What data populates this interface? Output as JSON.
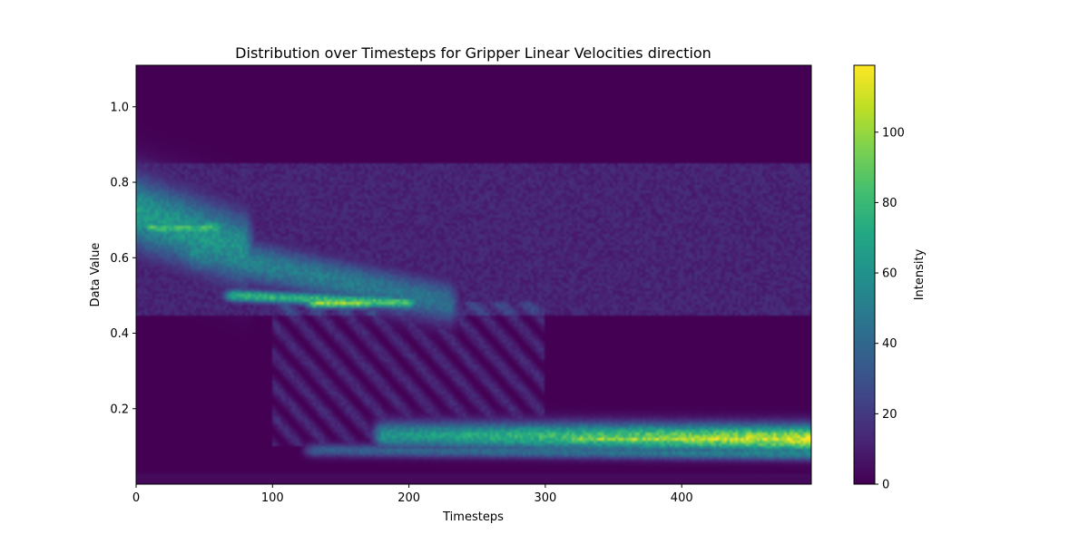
{
  "chart_data": {
    "type": "heatmap",
    "title": "Distribution over Timesteps for Gripper Linear Velocities direction",
    "xlabel": "Timesteps",
    "ylabel": "Data Value",
    "xlim": [
      0,
      495
    ],
    "ylim": [
      0.0,
      1.11
    ],
    "x_ticks": [
      0,
      100,
      200,
      300,
      400
    ],
    "y_ticks": [
      0.2,
      0.4,
      0.6,
      0.8,
      1.0
    ],
    "y_tick_labels": [
      "0.2",
      "0.4",
      "0.6",
      "0.8",
      "1.0"
    ],
    "grid": false,
    "colormap": "viridis",
    "colorbar": {
      "label": "Intensity",
      "range": [
        0,
        119
      ],
      "ticks": [
        0,
        20,
        40,
        60,
        80,
        100
      ]
    },
    "bands": [
      {
        "x_start": 0,
        "x_end": 80,
        "y_center_start": 0.72,
        "y_center_end": 0.62,
        "width": 0.07,
        "intensity_start": 65,
        "intensity_end": 60
      },
      {
        "x_start": 10,
        "x_end": 60,
        "y_center_start": 0.68,
        "y_center_end": 0.68,
        "width": 0.012,
        "intensity_start": 85,
        "intensity_end": 80
      },
      {
        "x_start": 40,
        "x_end": 230,
        "y_center_start": 0.62,
        "y_center_end": 0.48,
        "width": 0.04,
        "intensity_start": 55,
        "intensity_end": 45
      },
      {
        "x_start": 70,
        "x_end": 200,
        "y_center_start": 0.5,
        "y_center_end": 0.48,
        "width": 0.012,
        "intensity_start": 75,
        "intensity_end": 85
      },
      {
        "x_start": 130,
        "x_end": 170,
        "y_center_start": 0.48,
        "y_center_end": 0.48,
        "width": 0.01,
        "intensity_start": 100,
        "intensity_end": 100
      },
      {
        "x_start": 180,
        "x_end": 495,
        "y_center_start": 0.13,
        "y_center_end": 0.12,
        "width": 0.025,
        "intensity_start": 60,
        "intensity_end": 110
      },
      {
        "x_start": 320,
        "x_end": 495,
        "y_center_start": 0.12,
        "y_center_end": 0.12,
        "width": 0.012,
        "intensity_start": 95,
        "intensity_end": 118
      },
      {
        "x_start": 130,
        "x_end": 495,
        "y_center_start": 0.09,
        "y_center_end": 0.08,
        "width": 0.012,
        "intensity_start": 35,
        "intensity_end": 55
      }
    ],
    "background_intensity": {
      "upper_region": {
        "y_range": [
          0.45,
          0.85
        ],
        "x_range": [
          0,
          495
        ],
        "intensity": 12
      },
      "diagonal_streaks": {
        "x_range": [
          100,
          300
        ],
        "y_range": [
          0.1,
          0.48
        ],
        "intensity": 14
      },
      "lower_floor": {
        "y_range": [
          0.0,
          0.03
        ],
        "intensity": 3
      }
    }
  }
}
